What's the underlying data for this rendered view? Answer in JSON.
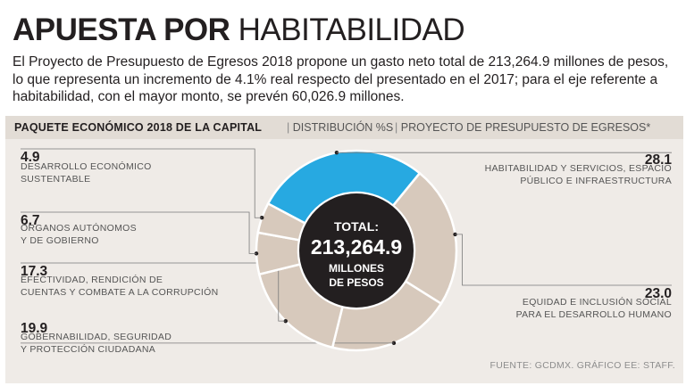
{
  "header": {
    "title_bold": "APUESTA POR",
    "title_light": "HABITABILIDAD",
    "intro": "El Proyecto de Presupuesto de Egresos 2018 propone un gasto neto total de 213,264.9 millones de pesos, lo que representa un incremento de 4.1% real respecto del presentado en el 2017; para el eje referente a habitabilidad, con el mayor monto, se prevén 60,026.9 millones."
  },
  "subtitle": {
    "main": "PAQUETE ECONÓMICO 2018 DE LA CAPITAL",
    "separator": "|",
    "distribution": "DISTRIBUCIÓN %S",
    "project": "PROYECTO DE PRESUPUESTO DE EGRESOS*"
  },
  "colors": {
    "highlight": "#27a9e1",
    "slice": "#d7c9bc",
    "center": "#231f20",
    "panel": "#efebe7"
  },
  "chart_data": {
    "type": "pie",
    "title": "PAQUETE ECONÓMICO 2018 DE LA CAPITAL",
    "unit": "%",
    "slices": [
      {
        "label_lines": [
          "HABITABILIDAD Y SERVICIOS, ESPACIO",
          "PÚBLICO E INFRAESTRUCTURA"
        ],
        "value": 28.1,
        "value_text": "28.1",
        "highlight": true
      },
      {
        "label_lines": [
          "EQUIDAD E INCLUSIÓN SOCIAL",
          "PARA EL DESARROLLO HUMANO"
        ],
        "value": 23.0,
        "value_text": "23.0",
        "highlight": false
      },
      {
        "label_lines": [
          "GOBERNABILIDAD, SEGURIDAD",
          "Y PROTECCIÓN CIUDADANA"
        ],
        "value": 19.9,
        "value_text": "19.9",
        "highlight": false
      },
      {
        "label_lines": [
          "EFECTIVIDAD, RENDICIÓN DE",
          "CUENTAS Y COMBATE A LA CORRUPCIÓN"
        ],
        "value": 17.3,
        "value_text": "17.3",
        "highlight": false
      },
      {
        "label_lines": [
          "ÓRGANOS AUTÓNOMOS",
          "Y DE GOBIERNO"
        ],
        "value": 6.7,
        "value_text": "6.7",
        "highlight": false
      },
      {
        "label_lines": [
          "DESARROLLO ECONÓMICO",
          "SUSTENTABLE"
        ],
        "value": 4.9,
        "value_text": "4.9",
        "highlight": false
      }
    ],
    "center": {
      "line1": "TOTAL:",
      "amount": "213,264.9",
      "line3": "MILLONES",
      "line4": "DE PESOS"
    }
  },
  "source": "FUENTE: GCDMX. GRÁFICO EE: STAFF."
}
